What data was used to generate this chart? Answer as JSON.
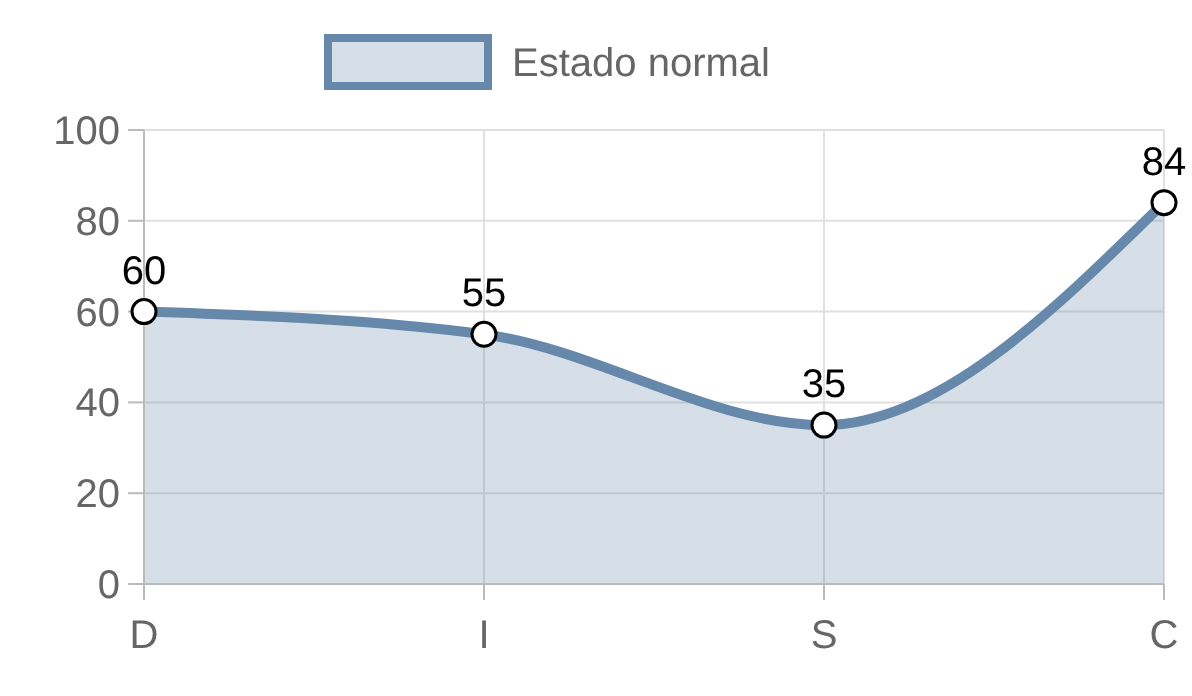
{
  "chart_data": {
    "type": "area",
    "categories": [
      "D",
      "I",
      "S",
      "C"
    ],
    "series": [
      {
        "name": "Estado normal",
        "color": "#6688aa",
        "values": [
          60,
          55,
          35,
          84
        ]
      }
    ],
    "ylim": [
      0,
      100
    ],
    "yticks": [
      0,
      20,
      40,
      60,
      80,
      100
    ],
    "grid": true,
    "legend": "top",
    "marker": "circle",
    "data_labels": true
  }
}
